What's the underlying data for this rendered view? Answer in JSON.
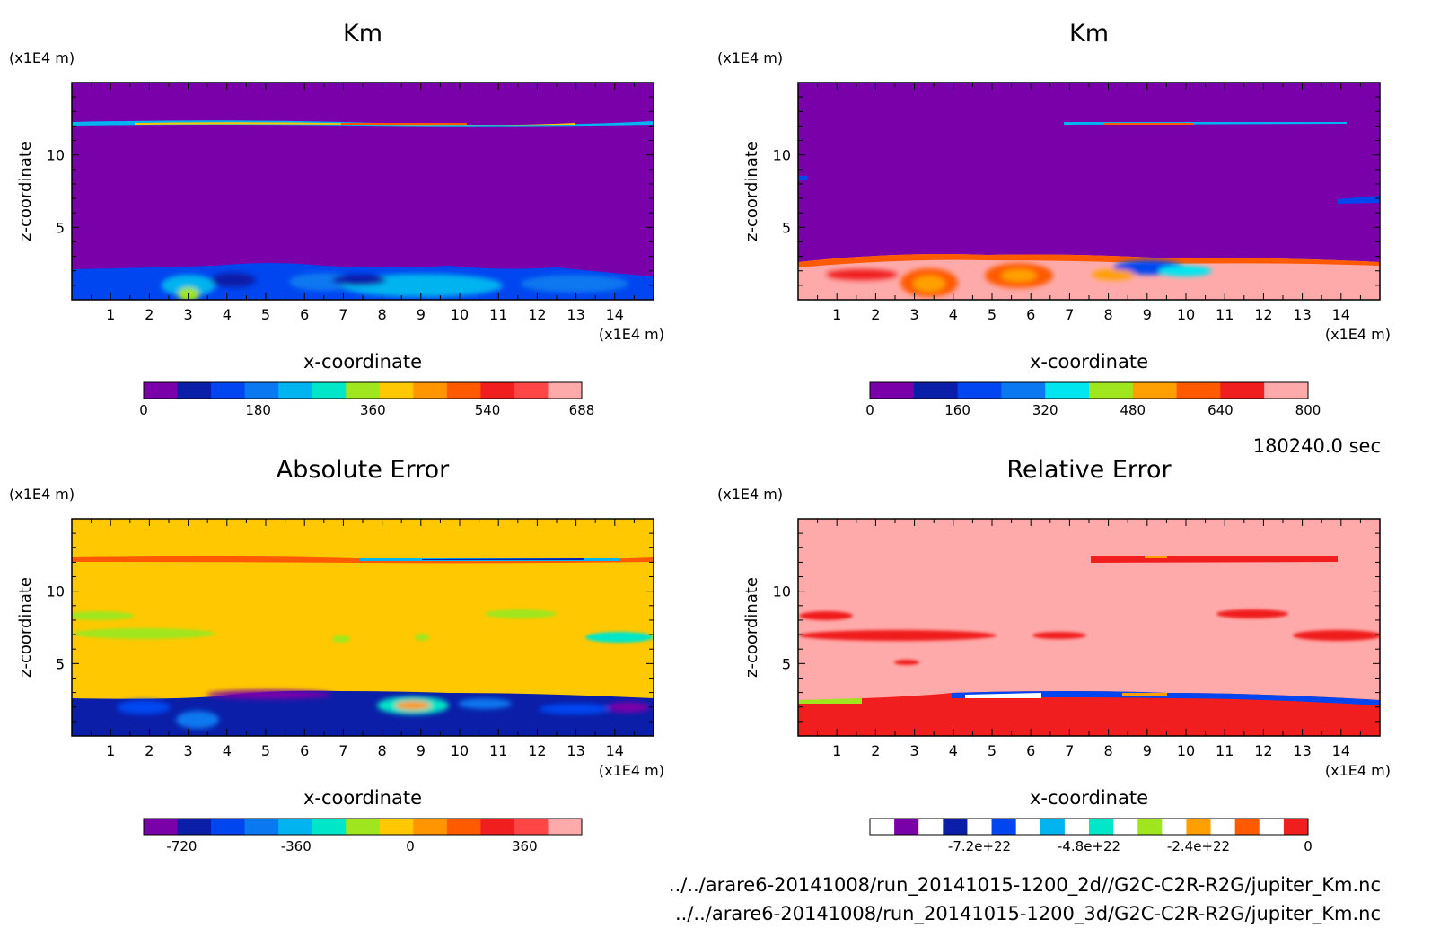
{
  "time_label": "180240.0 sec",
  "file_paths": [
    "../../arare6-20141008/run_20141015-1200_2d//G2C-C2R-R2G/jupiter_Km.nc",
    "../../arare6-20141008/run_20141015-1200_3d/G2C-C2R-R2G/jupiter_Km.nc"
  ],
  "chart_data": [
    {
      "type": "heatmap",
      "title": "Km",
      "xlabel": "x-coordinate",
      "ylabel": "z-coordinate",
      "x_unit": "(x1E4 m)",
      "y_unit": "(x1E4 m)",
      "xlim": [
        0,
        15
      ],
      "ylim": [
        0,
        15
      ],
      "x_ticks": [
        "1",
        "2",
        "3",
        "4",
        "5",
        "6",
        "7",
        "8",
        "9",
        "10",
        "11",
        "12",
        "13",
        "14"
      ],
      "y_ticks": [
        "5",
        "10"
      ],
      "colorbar": {
        "labels": [
          "0",
          "180",
          "360",
          "540",
          "688"
        ],
        "label_positions": [
          0,
          180,
          360,
          540,
          688
        ],
        "range": [
          0,
          688
        ],
        "colors": [
          "#7a00aa",
          "#0a1ea8",
          "#0046f0",
          "#0a78f0",
          "#00b4f0",
          "#00e6c8",
          "#a0e61e",
          "#ffc800",
          "#ff9600",
          "#ff5a00",
          "#f01e1e",
          "#ff4646",
          "#ffaaaa"
        ]
      },
      "features": [
        {
          "kind": "background",
          "level": 0
        },
        {
          "kind": "thin-layer",
          "z": 12.2,
          "x": [
            0,
            15
          ],
          "levels": [
            180,
            540
          ]
        },
        {
          "kind": "lower-layer",
          "z": [
            0,
            2.2
          ],
          "x": [
            0,
            15
          ],
          "levels": [
            90,
            360
          ]
        }
      ]
    },
    {
      "type": "heatmap",
      "title": "Km",
      "xlabel": "x-coordinate",
      "ylabel": "z-coordinate",
      "x_unit": "(x1E4 m)",
      "y_unit": "(x1E4 m)",
      "xlim": [
        0,
        15
      ],
      "ylim": [
        0,
        15
      ],
      "x_ticks": [
        "1",
        "2",
        "3",
        "4",
        "5",
        "6",
        "7",
        "8",
        "9",
        "10",
        "11",
        "12",
        "13",
        "14"
      ],
      "y_ticks": [
        "5",
        "10"
      ],
      "colorbar": {
        "labels": [
          "0",
          "160",
          "320",
          "480",
          "640",
          "800"
        ],
        "label_positions": [
          0,
          160,
          320,
          480,
          640,
          800
        ],
        "range": [
          0,
          800
        ],
        "colors": [
          "#7a00aa",
          "#0a1ea8",
          "#0046f0",
          "#0a78f0",
          "#00e6f0",
          "#a0e61e",
          "#ffa000",
          "#ff5a00",
          "#f01e1e",
          "#ffaaaa"
        ]
      },
      "features": [
        {
          "kind": "background",
          "level": 0
        },
        {
          "kind": "thin-layer",
          "z": 12.2,
          "x": [
            7,
            14
          ],
          "levels": [
            160,
            640
          ]
        },
        {
          "kind": "lower-layer",
          "z": [
            0,
            3.0
          ],
          "x": [
            0,
            15
          ],
          "levels": [
            640,
            800
          ]
        }
      ]
    },
    {
      "type": "heatmap",
      "title": "Absolute Error",
      "xlabel": "x-coordinate",
      "ylabel": "z-coordinate",
      "x_unit": "(x1E4 m)",
      "y_unit": "(x1E4 m)",
      "xlim": [
        0,
        15
      ],
      "ylim": [
        0,
        15
      ],
      "x_ticks": [
        "1",
        "2",
        "3",
        "4",
        "5",
        "6",
        "7",
        "8",
        "9",
        "10",
        "11",
        "12",
        "13",
        "14"
      ],
      "y_ticks": [
        "5",
        "10"
      ],
      "colorbar": {
        "labels": [
          "-720",
          "-360",
          "0",
          "360"
        ],
        "label_positions": [
          -720,
          -360,
          0,
          360
        ],
        "range": [
          -840,
          540
        ],
        "colors": [
          "#7a00aa",
          "#0a1ea8",
          "#0046f0",
          "#0a78f0",
          "#00b4f0",
          "#00e6c8",
          "#a0e61e",
          "#ffc800",
          "#ff9600",
          "#ff5a00",
          "#f01e1e",
          "#ff4646",
          "#ffaaaa"
        ]
      },
      "features": [
        {
          "kind": "background",
          "level": 0
        },
        {
          "kind": "thin-layer",
          "z": 12.2,
          "x": [
            0,
            15
          ],
          "levels": [
            360,
            -360
          ]
        },
        {
          "kind": "mid-band",
          "z": 7.5,
          "x": [
            0,
            15
          ],
          "levels": [
            -120
          ]
        },
        {
          "kind": "lower-layer",
          "z": [
            0,
            3.0
          ],
          "x": [
            0,
            15
          ],
          "levels": [
            -720,
            -360
          ]
        }
      ]
    },
    {
      "type": "heatmap",
      "title": "Relative Error",
      "xlabel": "x-coordinate",
      "ylabel": "z-coordinate",
      "x_unit": "(x1E4 m)",
      "y_unit": "(x1E4 m)",
      "xlim": [
        0,
        15
      ],
      "ylim": [
        0,
        15
      ],
      "x_ticks": [
        "1",
        "2",
        "3",
        "4",
        "5",
        "6",
        "7",
        "8",
        "9",
        "10",
        "11",
        "12",
        "13",
        "14"
      ],
      "y_ticks": [
        "5",
        "10"
      ],
      "colorbar": {
        "labels": [
          "-7.2e+22",
          "-4.8e+22",
          "-2.4e+22",
          "0"
        ],
        "label_positions": [
          -7.2e+22,
          -4.8e+22,
          -2.4e+22,
          0
        ],
        "range": [
          -9.6e+22,
          0
        ],
        "colors": [
          "#ffffff",
          "#7a00aa",
          "#ffffff",
          "#0a1ea8",
          "#ffffff",
          "#0046f0",
          "#ffffff",
          "#00b4f0",
          "#ffffff",
          "#00e6c8",
          "#ffffff",
          "#a0e61e",
          "#ffffff",
          "#ffa000",
          "#ffffff",
          "#ff5a00",
          "#ffffff",
          "#f01e1e"
        ]
      },
      "features": [
        {
          "kind": "background",
          "level": 0
        },
        {
          "kind": "thin-layer",
          "z": 12.2,
          "x": [
            7,
            14
          ],
          "levels": [
            0
          ]
        },
        {
          "kind": "mid-band",
          "z": 7.3,
          "x": [
            0,
            15
          ],
          "levels": [
            0
          ]
        },
        {
          "kind": "lower-layer",
          "z": [
            0,
            2.4
          ],
          "x": [
            0,
            15
          ],
          "levels": [
            0
          ]
        }
      ]
    }
  ]
}
